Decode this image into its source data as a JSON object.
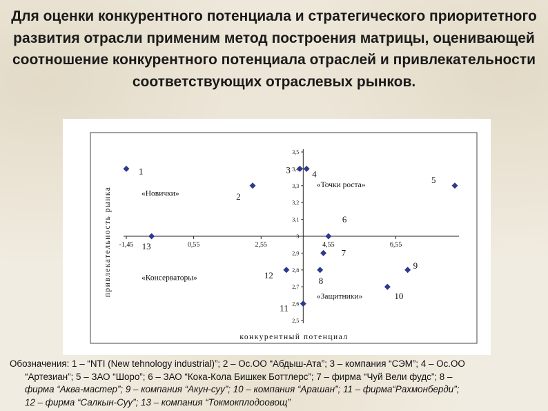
{
  "slide": {
    "title": "Для оценки конкурентного потенциала и стратегического приоритетного развития отрасли применим метод построения матрицы, оценивающей соотношение конкурентного потенциала отраслей и привлекательности соответствующих отраслевых рынков.",
    "legend_line1": "Обозначения: 1 – “NTI (New tehnology industrial)”; 2 – Oc.OO “Абдыш-Ата”; 3 – компания “СЭМ”; 4 – Oc.OO",
    "legend_line2": "“Артезиан”; 5 – ЗАО “Шоро”; 6 – ЗАО “Кока-Кола Бишкек Боттлерс”; 7 – фирма “Чуй Вели фудс”; 8 –",
    "legend_line3": "фирма “Аква-мастер”; 9 – компания “Акун-суу”; 10 – компания “Арашан”; 11 – фирма“Рахмонберди”;",
    "legend_line4": "12 – фирма “Салкын-Суу”; 13 – компания “Токмокплодоовощ”"
  },
  "chart_data": {
    "type": "scatter",
    "xlabel": "конкурентный потенциал",
    "ylabel": "привлекательность рынка",
    "xlim": [
      -1.45,
      8.3
    ],
    "ylim": [
      2.5,
      3.5
    ],
    "x_ticks": [
      "-1,45",
      "0,55",
      "2,55",
      "4,55",
      "6,55"
    ],
    "x_tick_values": [
      -1.45,
      0.55,
      2.55,
      4.55,
      6.55
    ],
    "y_ticks": [
      "2,5",
      "2,6",
      "2,7",
      "2,8",
      "2,9",
      "3",
      "3,1",
      "3,2",
      "3,3",
      "3,4",
      "3,5"
    ],
    "y_tick_values": [
      2.5,
      2.6,
      2.7,
      2.8,
      2.9,
      3.0,
      3.1,
      3.2,
      3.3,
      3.4,
      3.5
    ],
    "x_cross": 3.8,
    "y_cross": 3.0,
    "quadrants": [
      {
        "label": "«Новички»",
        "x": -1.0,
        "y": 3.24
      },
      {
        "label": "«Точки роста»",
        "x": 4.2,
        "y": 3.29
      },
      {
        "label": "«Консерваторы»",
        "x": -1.0,
        "y": 2.74
      },
      {
        "label": "«Защитники»",
        "x": 4.2,
        "y": 2.63
      }
    ],
    "points": [
      {
        "label": "1",
        "x": -1.45,
        "y": 3.4
      },
      {
        "label": "2",
        "x": 2.3,
        "y": 3.3
      },
      {
        "label": "3",
        "x": 3.7,
        "y": 3.4
      },
      {
        "label": "4",
        "x": 3.9,
        "y": 3.4
      },
      {
        "label": "5",
        "x": 8.3,
        "y": 3.3
      },
      {
        "label": "6",
        "x": 4.55,
        "y": 3.0
      },
      {
        "label": "7",
        "x": 4.4,
        "y": 2.9
      },
      {
        "label": "8",
        "x": 4.3,
        "y": 2.8
      },
      {
        "label": "9",
        "x": 6.9,
        "y": 2.8
      },
      {
        "label": "10",
        "x": 6.3,
        "y": 2.7
      },
      {
        "label": "11",
        "x": 3.8,
        "y": 2.6
      },
      {
        "label": "12",
        "x": 3.3,
        "y": 2.8
      },
      {
        "label": "13",
        "x": -0.7,
        "y": 3.0
      }
    ]
  }
}
